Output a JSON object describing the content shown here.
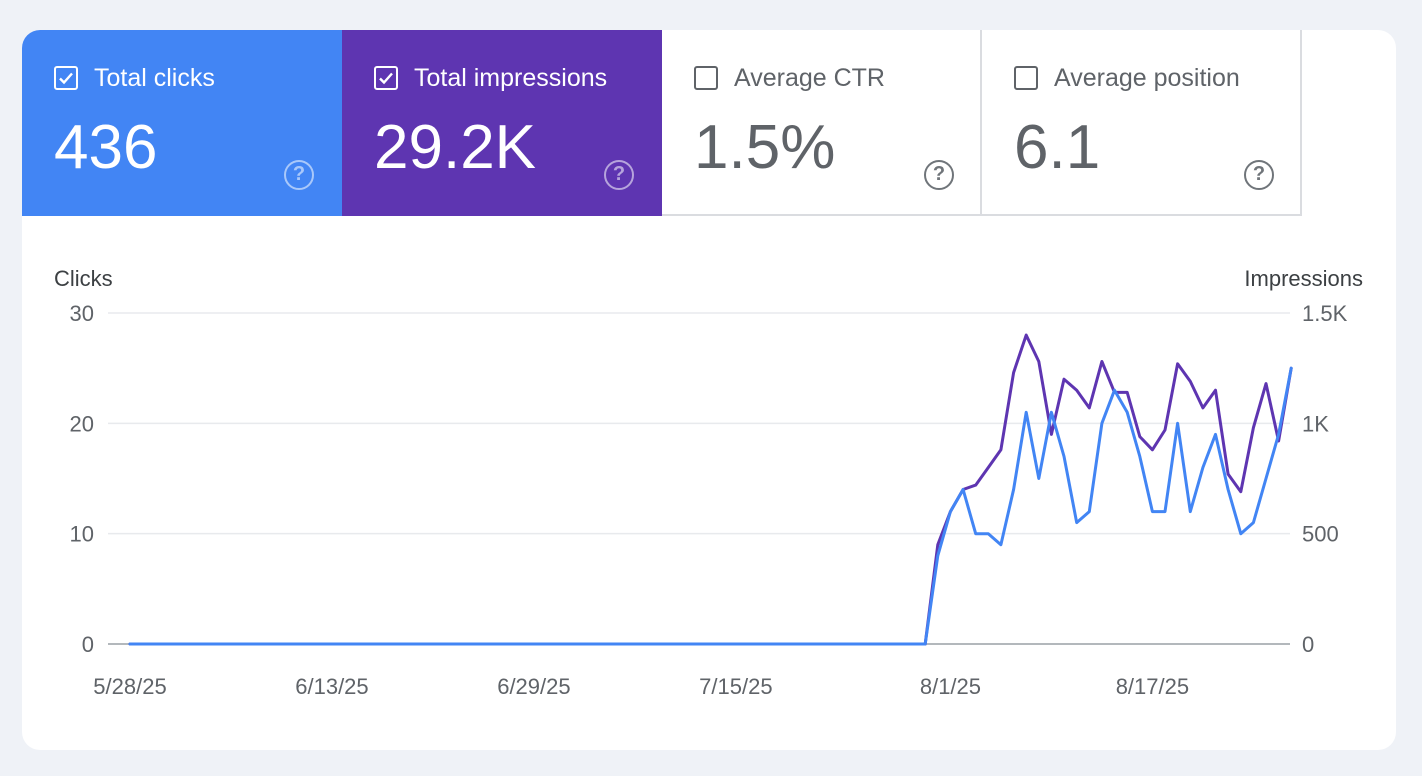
{
  "metrics": {
    "clicks": {
      "label": "Total clicks",
      "value": "436",
      "checked": true,
      "color": "#4285f4"
    },
    "impressions": {
      "label": "Total impressions",
      "value": "29.2K",
      "checked": true,
      "color": "#5e35b1"
    },
    "ctr": {
      "label": "Average CTR",
      "value": "1.5%",
      "checked": false
    },
    "position": {
      "label": "Average position",
      "value": "6.1",
      "checked": false
    }
  },
  "help_glyph": "?",
  "chart_data": {
    "type": "line",
    "left_axis_label": "Clicks",
    "right_axis_label": "Impressions",
    "left_ylim": [
      0,
      30
    ],
    "right_ylim": [
      0,
      1500
    ],
    "left_ticks": [
      "0",
      "10",
      "20",
      "30"
    ],
    "left_tick_values": [
      0,
      10,
      20,
      30
    ],
    "right_ticks": [
      "0",
      "500",
      "1K",
      "1.5K"
    ],
    "right_tick_values": [
      0,
      500,
      1000,
      1500
    ],
    "x_start": "5/28/25",
    "num_days": 91,
    "x_tick_labels": [
      "5/28/25",
      "6/13/25",
      "6/29/25",
      "7/15/25",
      "8/1/25",
      "8/17/25"
    ],
    "x_tick_indices": [
      0,
      16,
      32,
      48,
      65,
      81
    ],
    "series": [
      {
        "name": "Impressions",
        "axis": "right",
        "color": "#5e35b1",
        "values": [
          0,
          0,
          0,
          0,
          0,
          0,
          0,
          0,
          0,
          0,
          0,
          0,
          0,
          0,
          0,
          0,
          0,
          0,
          0,
          0,
          0,
          0,
          0,
          0,
          0,
          0,
          0,
          0,
          0,
          0,
          0,
          0,
          0,
          0,
          0,
          0,
          0,
          0,
          0,
          0,
          0,
          0,
          0,
          0,
          0,
          0,
          0,
          0,
          0,
          0,
          0,
          0,
          0,
          0,
          0,
          0,
          0,
          0,
          0,
          0,
          0,
          0,
          0,
          0,
          450,
          600,
          700,
          720,
          800,
          880,
          1230,
          1400,
          1280,
          950,
          1200,
          1150,
          1070,
          1280,
          1140,
          1140,
          940,
          880,
          970,
          1270,
          1190,
          1070,
          1150,
          770,
          690,
          980,
          1180,
          920,
          1250
        ]
      },
      {
        "name": "Clicks",
        "axis": "left",
        "color": "#4285f4",
        "values": [
          0,
          0,
          0,
          0,
          0,
          0,
          0,
          0,
          0,
          0,
          0,
          0,
          0,
          0,
          0,
          0,
          0,
          0,
          0,
          0,
          0,
          0,
          0,
          0,
          0,
          0,
          0,
          0,
          0,
          0,
          0,
          0,
          0,
          0,
          0,
          0,
          0,
          0,
          0,
          0,
          0,
          0,
          0,
          0,
          0,
          0,
          0,
          0,
          0,
          0,
          0,
          0,
          0,
          0,
          0,
          0,
          0,
          0,
          0,
          0,
          0,
          0,
          0,
          0,
          8,
          12,
          14,
          10,
          10,
          9,
          14,
          21,
          15,
          21,
          17,
          11,
          12,
          20,
          23,
          21,
          17,
          12,
          12,
          20,
          12,
          16,
          19,
          14,
          10,
          11,
          15,
          19,
          25
        ]
      }
    ]
  }
}
